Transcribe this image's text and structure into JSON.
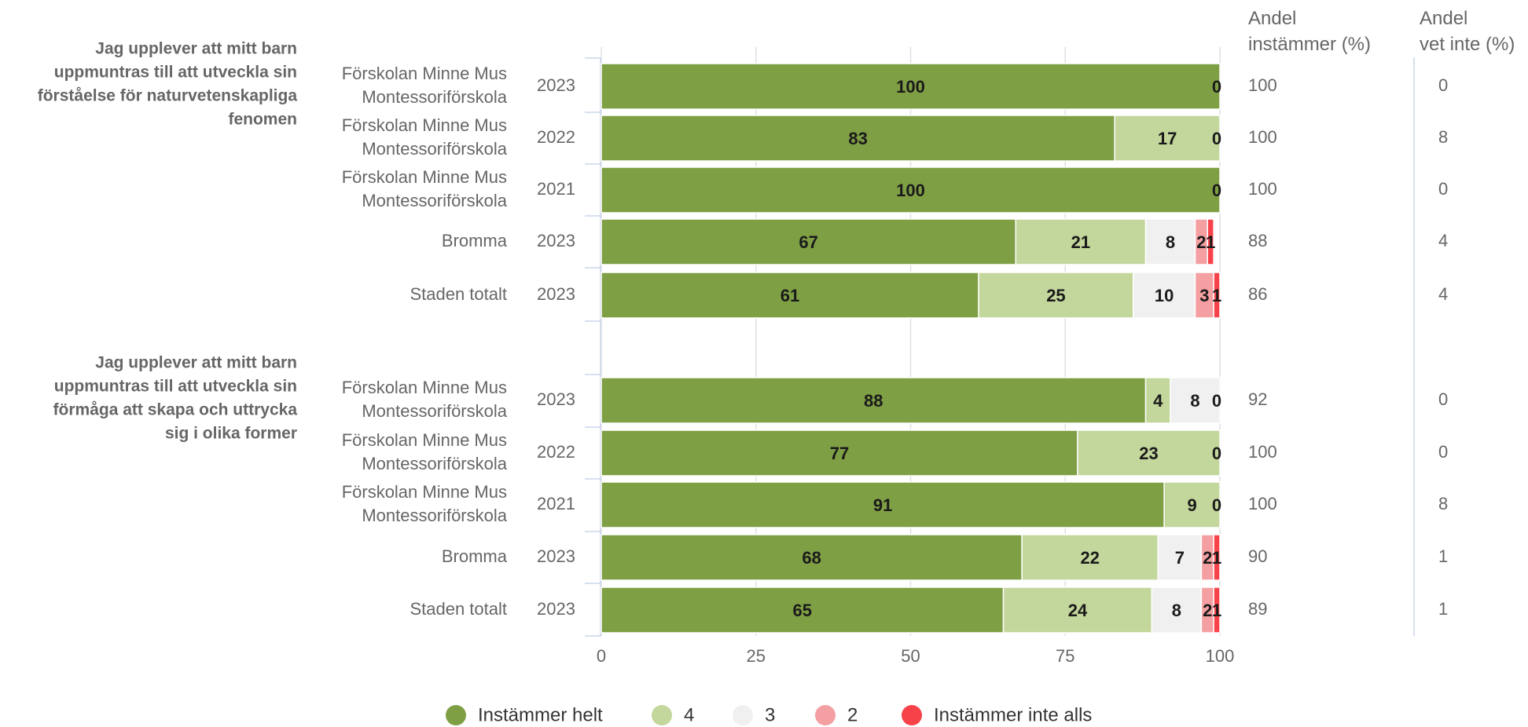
{
  "chart_data": {
    "type": "bar",
    "orientation": "horizontal",
    "stacked": true,
    "xlim": [
      0,
      100
    ],
    "x_ticks": [
      "0",
      "25",
      "50",
      "75",
      "100"
    ],
    "grid": true,
    "legend_position": "bottom",
    "series": [
      {
        "name": "Instämmer helt",
        "color": "#7f9f45"
      },
      {
        "name": "4",
        "color": "#c3d69b"
      },
      {
        "name": "3",
        "color": "#f0f0f0"
      },
      {
        "name": "2",
        "color": "#f4a0a3"
      },
      {
        "name": "Instämmer inte alls",
        "color": "#f8424a"
      }
    ],
    "column_headers": {
      "agree_line1": "Andel",
      "agree_line2": "instämmer (%)",
      "unknown_line1": "Andel",
      "unknown_line2": "vet inte (%)"
    },
    "groups": [
      {
        "question": [
          "Jag upplever att mitt barn",
          "uppmuntras till att utveckla sin",
          "förståelse för naturvetenskapliga",
          "fenomen"
        ],
        "rows": [
          {
            "unit": [
              "Förskolan Minne Mus",
              "Montessoriförskola"
            ],
            "year": "2023",
            "values": [
              100,
              0,
              0,
              0,
              0
            ],
            "labels": [
              "100",
              "",
              "",
              "",
              "0"
            ],
            "agree": "100",
            "unknown": "0"
          },
          {
            "unit": [
              "Förskolan Minne Mus",
              "Montessoriförskola"
            ],
            "year": "2022",
            "values": [
              83,
              17,
              0,
              0,
              0
            ],
            "labels": [
              "83",
              "17",
              "",
              "",
              "0"
            ],
            "agree": "100",
            "unknown": "8"
          },
          {
            "unit": [
              "Förskolan Minne Mus",
              "Montessoriförskola"
            ],
            "year": "2021",
            "values": [
              100,
              0,
              0,
              0,
              0
            ],
            "labels": [
              "100",
              "",
              "",
              "",
              "0"
            ],
            "agree": "100",
            "unknown": "0"
          },
          {
            "unit": [
              "Bromma"
            ],
            "year": "2023",
            "values": [
              67,
              21,
              8,
              2,
              1
            ],
            "labels": [
              "67",
              "21",
              "8",
              "2",
              "1"
            ],
            "agree": "88",
            "unknown": "4"
          },
          {
            "unit": [
              "Staden totalt"
            ],
            "year": "2023",
            "values": [
              61,
              25,
              10,
              3,
              1
            ],
            "labels": [
              "61",
              "25",
              "10",
              "3",
              "1"
            ],
            "agree": "86",
            "unknown": "4"
          }
        ]
      },
      {
        "question": [
          "Jag upplever att mitt barn",
          "uppmuntras till att utveckla sin",
          "förmåga att skapa och uttrycka",
          "sig i olika former"
        ],
        "rows": [
          {
            "unit": [
              "Förskolan Minne Mus",
              "Montessoriförskola"
            ],
            "year": "2023",
            "values": [
              88,
              4,
              8,
              0,
              0
            ],
            "labels": [
              "88",
              "4",
              "8",
              "",
              "0"
            ],
            "agree": "92",
            "unknown": "0"
          },
          {
            "unit": [
              "Förskolan Minne Mus",
              "Montessoriförskola"
            ],
            "year": "2022",
            "values": [
              77,
              23,
              0,
              0,
              0
            ],
            "labels": [
              "77",
              "23",
              "",
              "",
              "0"
            ],
            "agree": "100",
            "unknown": "0"
          },
          {
            "unit": [
              "Förskolan Minne Mus",
              "Montessoriförskola"
            ],
            "year": "2021",
            "values": [
              91,
              9,
              0,
              0,
              0
            ],
            "labels": [
              "91",
              "9",
              "",
              "",
              "0"
            ],
            "agree": "100",
            "unknown": "8"
          },
          {
            "unit": [
              "Bromma"
            ],
            "year": "2023",
            "values": [
              68,
              22,
              7,
              2,
              1
            ],
            "labels": [
              "68",
              "22",
              "7",
              "2",
              "1"
            ],
            "agree": "90",
            "unknown": "1"
          },
          {
            "unit": [
              "Staden totalt"
            ],
            "year": "2023",
            "values": [
              65,
              24,
              8,
              2,
              1
            ],
            "labels": [
              "65",
              "24",
              "8",
              "2",
              "1"
            ],
            "agree": "89",
            "unknown": "1"
          }
        ]
      }
    ]
  }
}
